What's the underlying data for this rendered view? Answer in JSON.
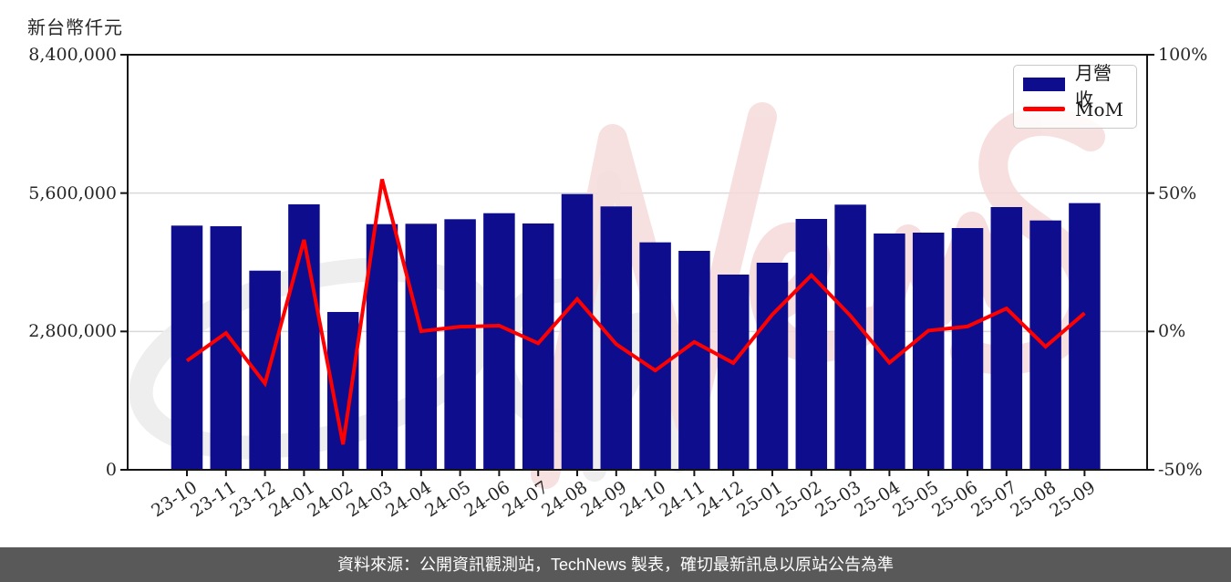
{
  "figure": {
    "y_axis_title": "新台幣仟元",
    "footer_note": "資料來源：公開資訊觀測站，TechNews 製表，確切最新訊息以原站公告為準",
    "watermark_text": "TechNews",
    "colors": {
      "bar": "#0d0d8e",
      "line": "#ff0000",
      "grid": "#d9d9d9",
      "axis": "#141414",
      "footer_bg": "#595959",
      "watermark_pink": "#f6dada",
      "watermark_gray": "#ededed"
    }
  },
  "chart_data": {
    "type": "bar+line",
    "categories": [
      "23-10",
      "23-11",
      "23-12",
      "24-01",
      "24-02",
      "24-03",
      "24-04",
      "24-05",
      "24-06",
      "24-07",
      "24-08",
      "24-09",
      "24-10",
      "24-11",
      "24-12",
      "25-01",
      "25-02",
      "25-03",
      "25-04",
      "25-05",
      "25-06",
      "25-07",
      "25-08",
      "25-09"
    ],
    "series": [
      {
        "name": "月營收",
        "type": "bar",
        "axis": "left",
        "unit": "新台幣仟元",
        "values": [
          4942000,
          4929000,
          4030000,
          5372000,
          3194000,
          4972000,
          4979000,
          5071000,
          5193000,
          4985000,
          5581000,
          5330000,
          4603000,
          4431000,
          3951000,
          4191000,
          5077000,
          5366000,
          4782000,
          4800000,
          4892000,
          5317000,
          5046000,
          5397000
        ]
      },
      {
        "name": "MoM",
        "type": "line",
        "axis": "right",
        "unit": "%",
        "values": [
          -10.6,
          -0.6,
          -18.8,
          33.1,
          -40.8,
          55.0,
          0.1,
          1.7,
          2.1,
          -4.3,
          11.7,
          -4.6,
          -14.1,
          -3.8,
          -11.4,
          6.1,
          20.3,
          5.7,
          -11.3,
          0.3,
          1.8,
          8.3,
          -5.5,
          6.6
        ]
      }
    ],
    "left_axis": {
      "range": [
        0,
        8400000
      ],
      "tick_labels": [
        "8,400,000",
        "5,600,000",
        "2,800,000",
        "0"
      ],
      "tick_values": [
        8400000,
        5600000,
        2800000,
        0
      ]
    },
    "right_axis": {
      "range": [
        -50,
        100
      ],
      "tick_labels": [
        "100%",
        "50%",
        "0%",
        "-50%"
      ],
      "tick_values": [
        100,
        50,
        0,
        -50
      ]
    },
    "grid": "horizontal gridlines at 5,600,000 (50%) and 2,800,000 (0%)",
    "legend_position": "upper right"
  }
}
